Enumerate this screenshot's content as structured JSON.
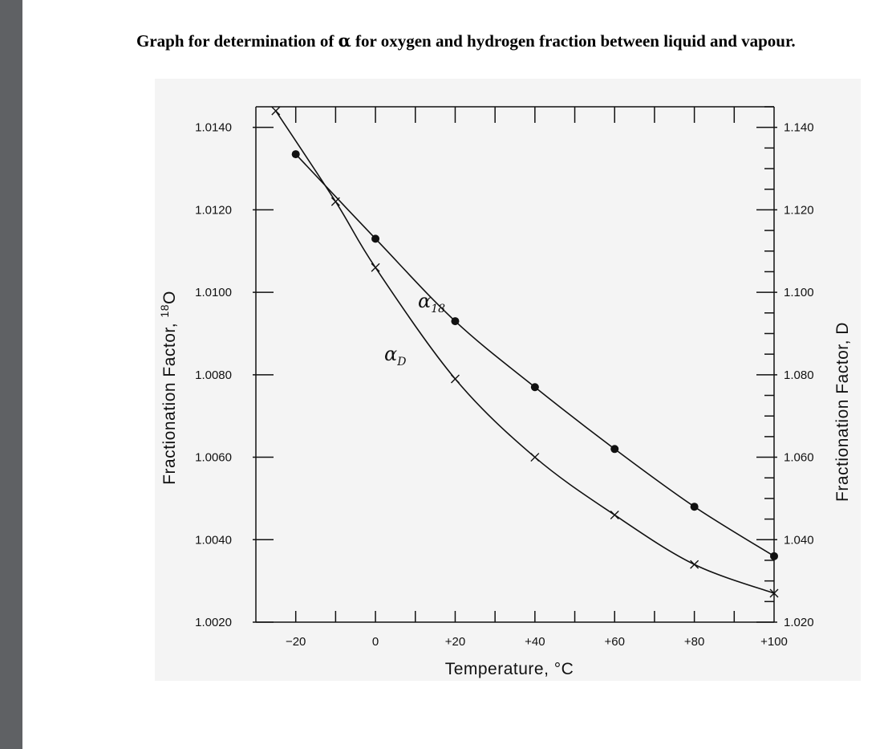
{
  "page": {
    "heading_prefix": "Graph for determination of ",
    "heading_symbol": "α",
    "heading_suffix": " for oxygen and hydrogen fraction between liquid and vapour."
  },
  "chart_data": {
    "type": "line",
    "xlabel": "Temperature, °C",
    "ylabel_left": "Fractionation Factor, ",
    "ylabel_left_superscript": "18",
    "ylabel_left_symbol": "O",
    "ylabel_right": "Fractionation Factor, D",
    "xlim": [
      -30,
      100
    ],
    "x_ticks": [
      -20,
      0,
      20,
      40,
      60,
      80,
      100
    ],
    "x_tick_labels": [
      "−20",
      "0",
      "+20",
      "+40",
      "+60",
      "+80",
      "+100"
    ],
    "y_left_lim": [
      1.002,
      1.0145
    ],
    "y_left_ticks": [
      "1.0020",
      "1.0040",
      "1.0060",
      "1.0080",
      "1.0100",
      "1.0120",
      "1.0140"
    ],
    "y_right_lim": [
      1.02,
      1.145
    ],
    "y_right_ticks": [
      "1.020",
      "1.040",
      "1.060",
      "1.080",
      "1.100",
      "1.120",
      "1.140"
    ],
    "series": [
      {
        "name": "α18",
        "label_main": "α",
        "label_sub": "18",
        "axis": "left",
        "marker": "dot",
        "x": [
          -20,
          0,
          20,
          40,
          60,
          80,
          100
        ],
        "y": [
          1.01335,
          1.0113,
          1.0093,
          1.0077,
          1.0062,
          1.0048,
          1.0036
        ]
      },
      {
        "name": "αD",
        "label_main": "α",
        "label_sub": "D",
        "axis": "right",
        "marker": "x",
        "x": [
          -25,
          -10,
          0,
          20,
          40,
          60,
          80,
          100
        ],
        "y": [
          1.144,
          1.122,
          1.106,
          1.079,
          1.06,
          1.046,
          1.034,
          1.027
        ]
      }
    ],
    "grid": false,
    "legend": "none"
  }
}
